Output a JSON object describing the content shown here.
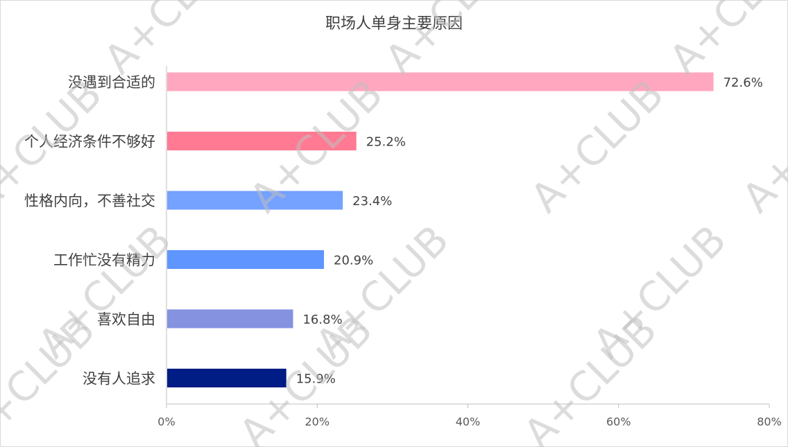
{
  "chart_data": {
    "type": "bar",
    "orientation": "horizontal",
    "title": "职场人单身主要原因",
    "categories": [
      "没遇到合适的",
      "个人经济条件不够好",
      "性格内向，不善社交",
      "工作忙没有精力",
      "喜欢自由",
      "没有人追求"
    ],
    "values": [
      72.6,
      25.2,
      23.4,
      20.9,
      16.8,
      15.9
    ],
    "value_labels": [
      "72.6%",
      "25.2%",
      "23.4%",
      "20.9%",
      "16.8%",
      "15.9%"
    ],
    "colors": [
      "#FFA7BF",
      "#FF7A92",
      "#75A1FF",
      "#5E95FF",
      "#8592E0",
      "#001C85"
    ],
    "xlim": [
      0,
      80
    ],
    "x_ticks": [
      0,
      20,
      40,
      60,
      80
    ],
    "x_tick_labels": [
      "0%",
      "20%",
      "40%",
      "60%",
      "80%"
    ],
    "xlabel": "",
    "ylabel": "",
    "grid": false,
    "legend": "none"
  },
  "watermark": "A+CLUB"
}
